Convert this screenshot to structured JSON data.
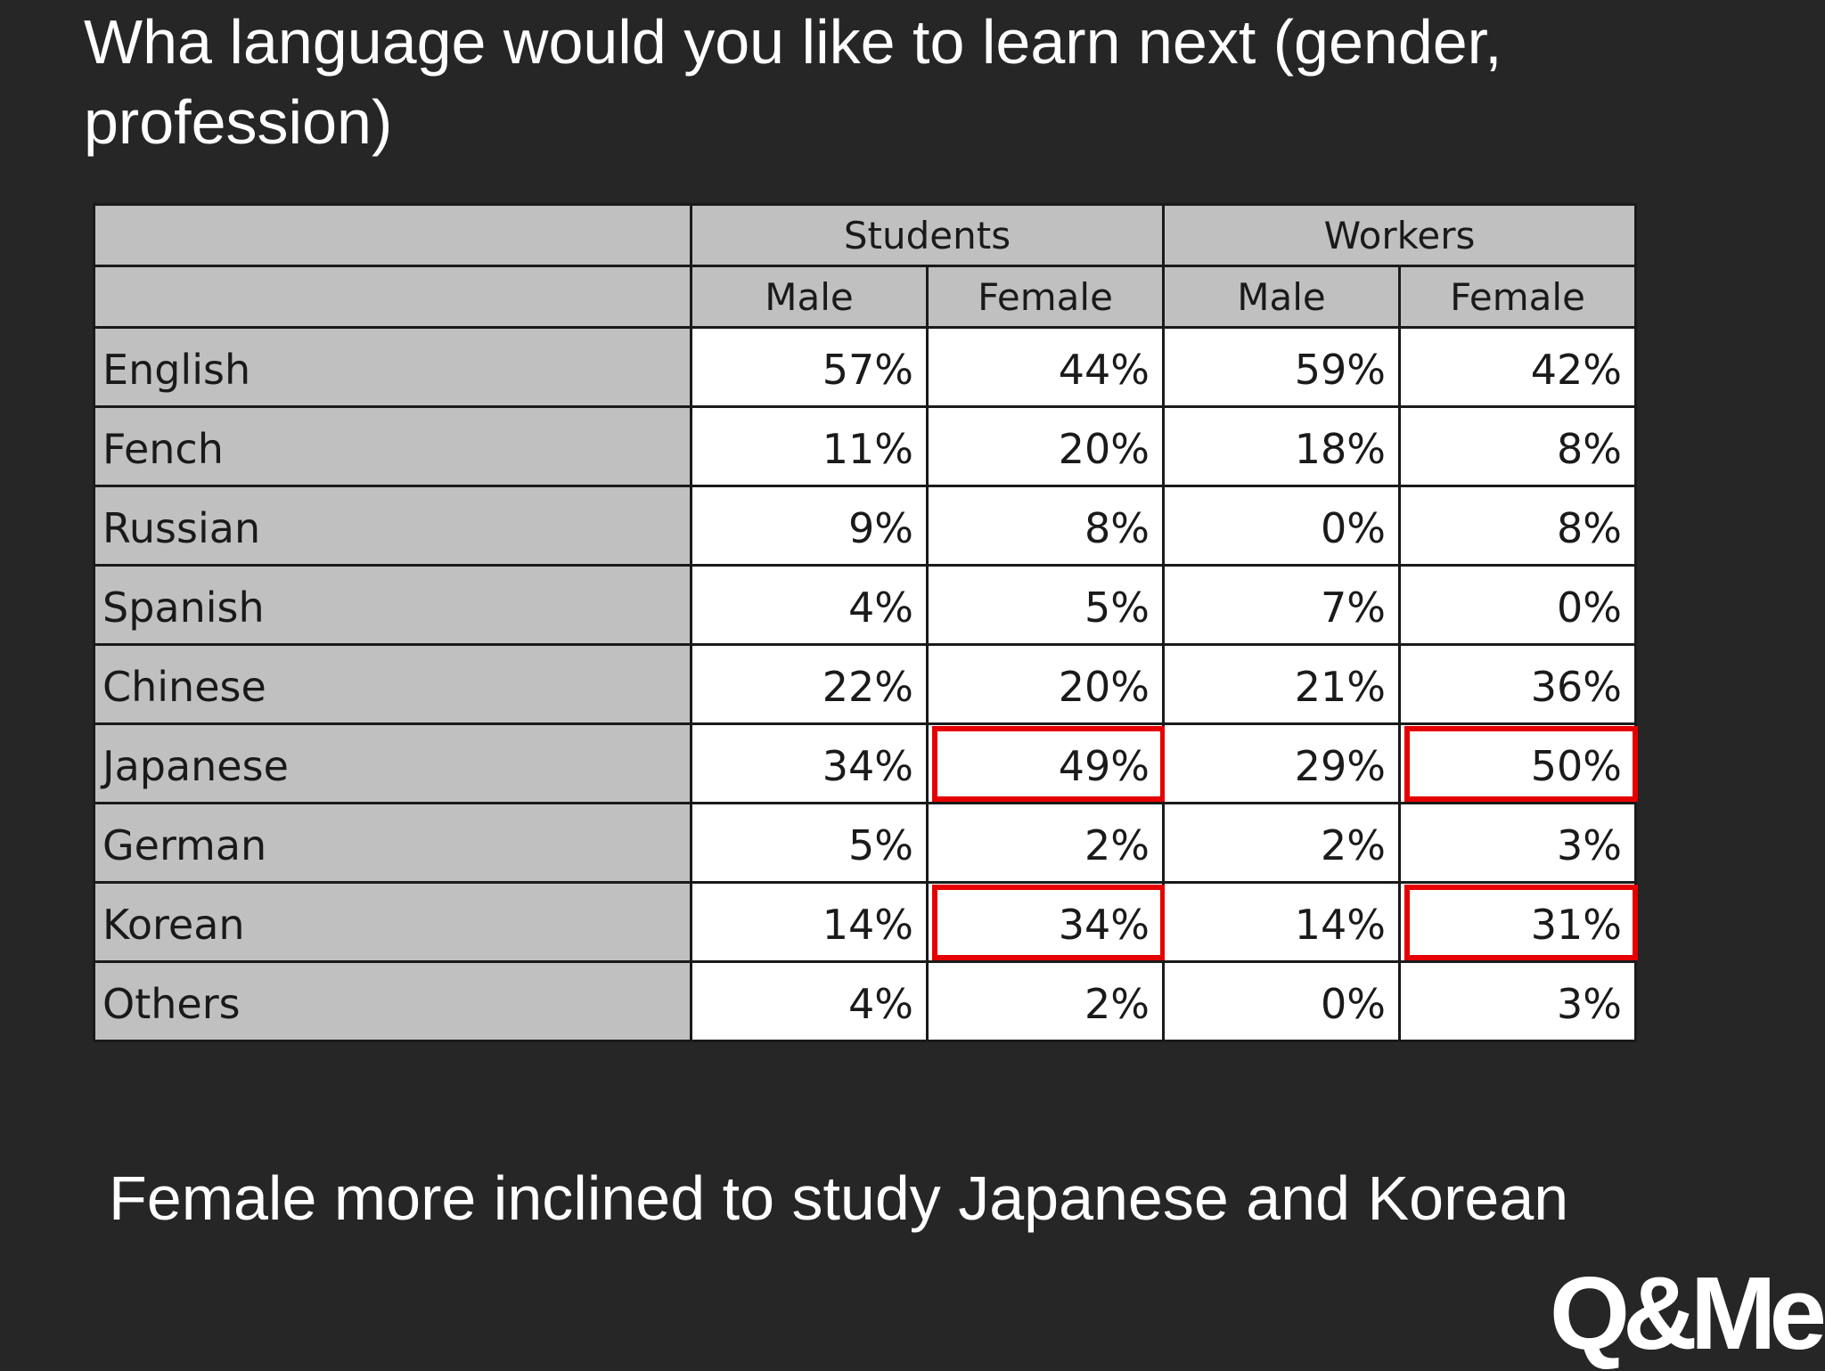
{
  "slide": {
    "title": "Wha language would you like to learn next (gender, profession)",
    "caption": "Female more inclined to study Japanese and Korean",
    "logo_text": "Q&Me"
  },
  "colors": {
    "background": "#262626",
    "header_fill": "#c0c0c0",
    "highlight": "#e60000"
  },
  "table": {
    "group_headers": [
      "Students",
      "Workers"
    ],
    "sub_headers": [
      "Male",
      "Female",
      "Male",
      "Female"
    ],
    "rows": [
      {
        "label": "English",
        "values": [
          "57%",
          "44%",
          "59%",
          "42%"
        ],
        "highlight": [
          false,
          false,
          false,
          false
        ]
      },
      {
        "label": "Fench",
        "values": [
          "11%",
          "20%",
          "18%",
          "8%"
        ],
        "highlight": [
          false,
          false,
          false,
          false
        ]
      },
      {
        "label": "Russian",
        "values": [
          "9%",
          "8%",
          "0%",
          "8%"
        ],
        "highlight": [
          false,
          false,
          false,
          false
        ]
      },
      {
        "label": "Spanish",
        "values": [
          "4%",
          "5%",
          "7%",
          "0%"
        ],
        "highlight": [
          false,
          false,
          false,
          false
        ]
      },
      {
        "label": "Chinese",
        "values": [
          "22%",
          "20%",
          "21%",
          "36%"
        ],
        "highlight": [
          false,
          false,
          false,
          false
        ]
      },
      {
        "label": "Japanese",
        "values": [
          "34%",
          "49%",
          "29%",
          "50%"
        ],
        "highlight": [
          false,
          true,
          false,
          true
        ]
      },
      {
        "label": "German",
        "values": [
          "5%",
          "2%",
          "2%",
          "3%"
        ],
        "highlight": [
          false,
          false,
          false,
          false
        ]
      },
      {
        "label": "Korean",
        "values": [
          "14%",
          "34%",
          "14%",
          "31%"
        ],
        "highlight": [
          false,
          true,
          false,
          true
        ]
      },
      {
        "label": "Others",
        "values": [
          "4%",
          "2%",
          "0%",
          "3%"
        ],
        "highlight": [
          false,
          false,
          false,
          false
        ]
      }
    ]
  }
}
